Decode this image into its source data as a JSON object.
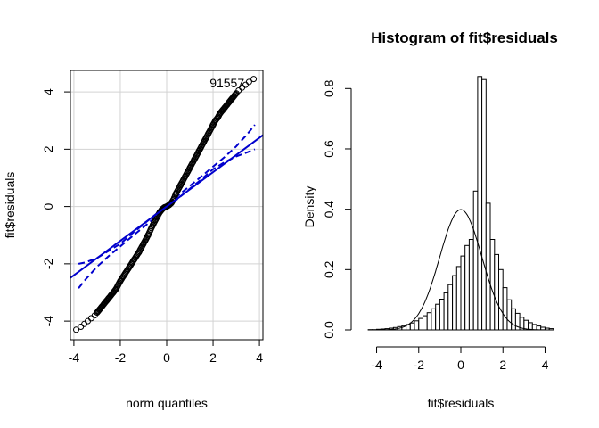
{
  "chart_data": [
    {
      "type": "scatter",
      "subtype": "qq-plot",
      "title": "",
      "xlabel": "norm quantiles",
      "ylabel": "fit$residuals",
      "xlim": [
        -4.15,
        4.15
      ],
      "ylim": [
        -4.65,
        4.75
      ],
      "x_ticks": [
        "-4",
        "-2",
        "0",
        "2",
        "4"
      ],
      "y_ticks": [
        "-4",
        "-2",
        "0",
        "2",
        "4"
      ],
      "grid": true,
      "colors": {
        "points": "#000000",
        "reference_line": "#0000cd",
        "envelope": "#0000cd",
        "grid": "#d3d3d3"
      },
      "reference_line": {
        "intercept": 0.0,
        "slope": 0.6
      },
      "envelope": {
        "x": [
          -3.8,
          -3.5,
          -3.0,
          -2.5,
          -2.0,
          -1.5,
          -1.0,
          -0.5,
          0.0,
          0.5,
          1.0,
          1.5,
          2.0,
          2.5,
          3.0,
          3.5,
          3.8
        ],
        "lower": [
          -2.85,
          -2.55,
          -2.1,
          -1.73,
          -1.39,
          -1.05,
          -0.72,
          -0.39,
          -0.05,
          0.29,
          0.62,
          0.95,
          1.3,
          1.55,
          1.75,
          1.9,
          2.0
        ],
        "upper": [
          -2.0,
          -1.95,
          -1.8,
          -1.55,
          -1.3,
          -0.95,
          -0.62,
          -0.29,
          0.05,
          0.39,
          0.72,
          1.05,
          1.39,
          1.73,
          2.1,
          2.55,
          2.85
        ]
      },
      "series": [
        {
          "x": [
            -3.9,
            -3.7,
            -3.55,
            -3.4,
            -3.25,
            -3.1,
            -3.0,
            -2.9,
            -2.8,
            -2.7,
            -2.6,
            -2.5,
            -2.4,
            -2.3,
            -2.2,
            -2.1,
            -2.0,
            -1.8,
            -1.6,
            -1.4,
            -1.2,
            -1.0,
            -0.8,
            -0.6,
            -0.4,
            -0.3,
            -0.2,
            -0.1,
            0.0,
            0.1,
            0.2,
            0.3,
            0.4,
            0.6,
            0.8,
            1.0,
            1.2,
            1.4,
            1.6,
            1.8,
            2.0,
            2.1,
            2.2,
            2.3,
            2.4,
            2.5,
            2.6,
            2.7,
            2.8,
            2.9,
            3.0,
            3.1,
            3.25,
            3.4,
            3.55,
            3.75
          ],
          "y": [
            -4.3,
            -4.2,
            -4.1,
            -4.0,
            -3.9,
            -3.8,
            -3.7,
            -3.6,
            -3.5,
            -3.4,
            -3.3,
            -3.2,
            -3.1,
            -3.0,
            -2.9,
            -2.75,
            -2.6,
            -2.35,
            -2.1,
            -1.85,
            -1.6,
            -1.3,
            -1.0,
            -0.65,
            -0.35,
            -0.2,
            -0.1,
            -0.03,
            0.0,
            0.05,
            0.12,
            0.25,
            0.45,
            0.75,
            1.05,
            1.35,
            1.65,
            1.95,
            2.25,
            2.55,
            2.85,
            3.0,
            3.1,
            3.25,
            3.35,
            3.45,
            3.55,
            3.65,
            3.75,
            3.85,
            3.95,
            4.05,
            4.15,
            4.25,
            4.35,
            4.45
          ]
        }
      ],
      "annotations": [
        {
          "text": "91557",
          "x": 2.6,
          "y": 4.32
        }
      ]
    },
    {
      "type": "histogram",
      "title": "Histogram of fit$residuals",
      "xlabel": "fit$residuals",
      "ylabel": "Density",
      "xlim": [
        -4.7,
        4.7
      ],
      "ylim": [
        0,
        0.86
      ],
      "x_ticks": [
        "-4",
        "-2",
        "0",
        "2",
        "4"
      ],
      "y_ticks": [
        "0.0",
        "0.2",
        "0.4",
        "0.6",
        "0.8"
      ],
      "bin_start": -4.4,
      "bin_width": 0.2,
      "values": [
        0.001,
        0.001,
        0.002,
        0.003,
        0.004,
        0.006,
        0.008,
        0.011,
        0.014,
        0.018,
        0.023,
        0.03,
        0.038,
        0.047,
        0.057,
        0.07,
        0.085,
        0.102,
        0.123,
        0.15,
        0.18,
        0.21,
        0.245,
        0.28,
        0.3,
        0.46,
        0.84,
        0.83,
        0.42,
        0.3,
        0.25,
        0.2,
        0.14,
        0.1,
        0.07,
        0.055,
        0.042,
        0.032,
        0.024,
        0.018,
        0.013,
        0.009,
        0.006,
        0.004
      ],
      "overlay": {
        "type": "normal-density",
        "mean": 0,
        "sd": 1
      },
      "colors": {
        "bars": "#ffffff",
        "bar_border": "#000000",
        "curve": "#000000"
      }
    }
  ]
}
